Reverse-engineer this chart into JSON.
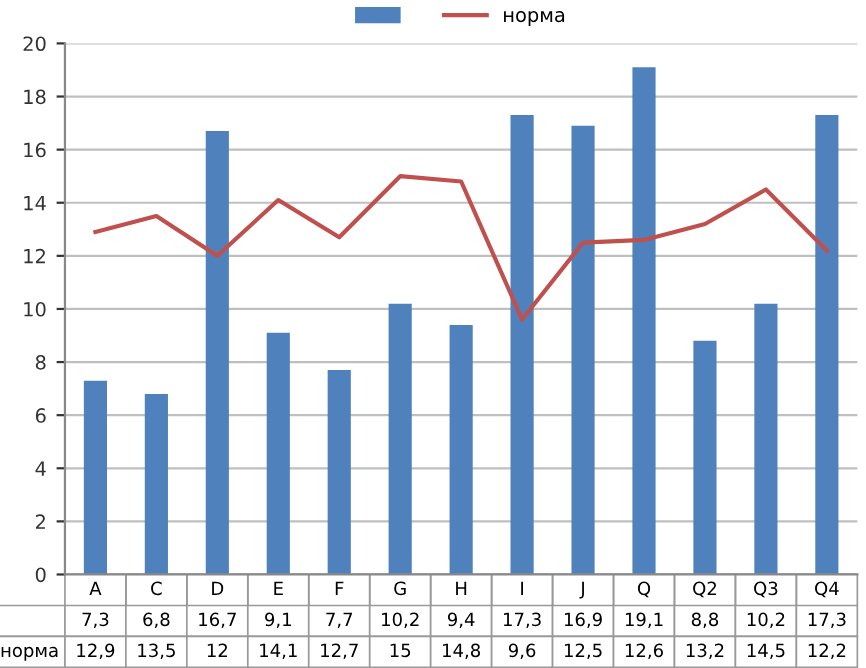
{
  "chart_data": {
    "type": "bar",
    "categories": [
      "A",
      "C",
      "D",
      "E",
      "F",
      "G",
      "H",
      "I",
      "J",
      "Q",
      "Q2",
      "Q3",
      "Q4"
    ],
    "series": [
      {
        "color": "#4f81bd",
        "values": [
          7.3,
          6.8,
          16.7,
          9.1,
          7.7,
          10.2,
          9.4,
          17.3,
          16.9,
          19.1,
          8.8,
          10.2,
          17.3
        ],
        "value_labels": [
          "7,3",
          "6,8",
          "16,7",
          "9,1",
          "7,7",
          "10,2",
          "9,4",
          "17,3",
          "16,9",
          "19,1",
          "8,8",
          "10,2",
          "17,3"
        ]
      },
      {
        "type": "line",
        "name": "норма",
        "color": "#c0504d",
        "values": [
          12.9,
          13.5,
          12,
          14.1,
          12.7,
          15,
          14.8,
          9.6,
          12.5,
          12.6,
          13.2,
          14.5,
          12.2
        ],
        "value_labels": [
          "12,9",
          "13,5",
          "12",
          "14,1",
          "12,7",
          "15",
          "14,8",
          "9,6",
          "12,5",
          "12,6",
          "13,2",
          "14,5",
          "12,2"
        ]
      }
    ],
    "ylim": [
      0,
      20
    ],
    "yticks": [
      0,
      2,
      4,
      6,
      8,
      10,
      12,
      14,
      16,
      18,
      20
    ],
    "grid": "y",
    "legend": "top",
    "marker": "none"
  }
}
